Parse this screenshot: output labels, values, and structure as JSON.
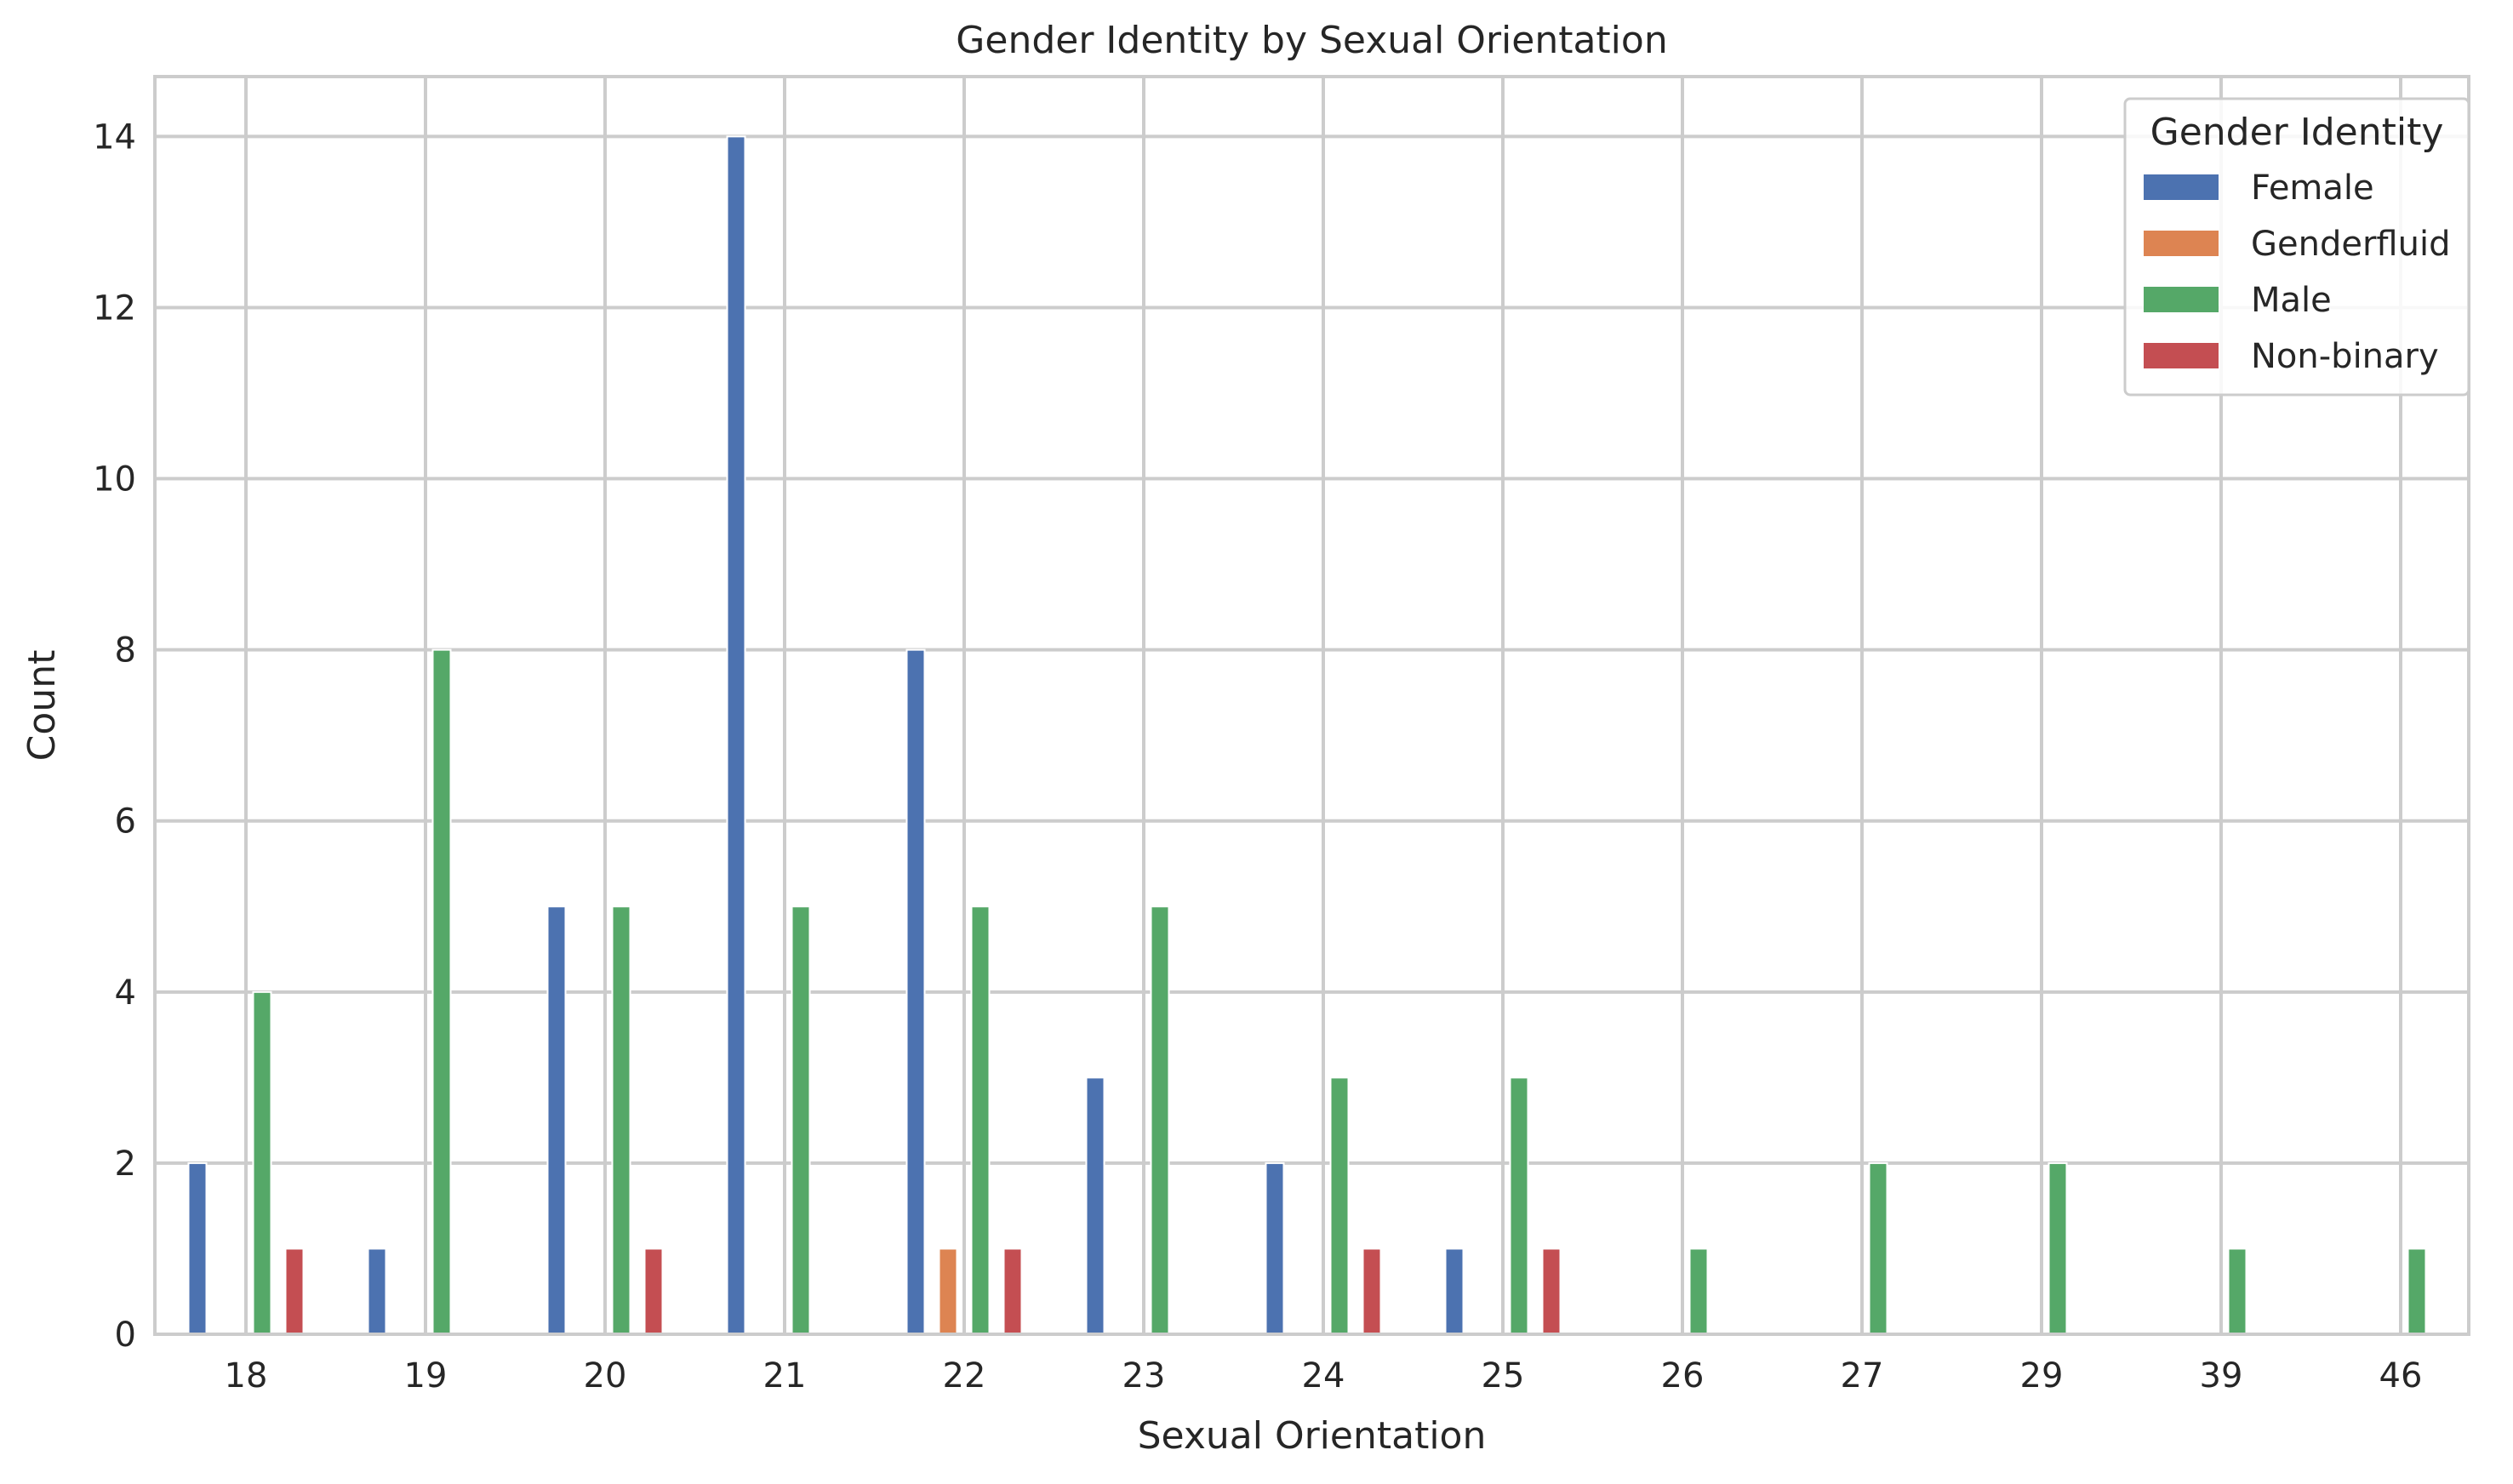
{
  "chart_data": {
    "type": "bar",
    "title": "Gender Identity by Sexual Orientation",
    "xlabel": "Sexual Orientation",
    "ylabel": "Count",
    "ylim": [
      0,
      14.7
    ],
    "yticks": [
      0,
      2,
      4,
      6,
      8,
      10,
      12,
      14
    ],
    "grid": true,
    "legend": {
      "title": "Gender Identity",
      "placement": "top-right"
    },
    "categories": [
      "18",
      "19",
      "20",
      "21",
      "22",
      "23",
      "24",
      "25",
      "26",
      "27",
      "29",
      "39",
      "46"
    ],
    "series": [
      {
        "name": "Female",
        "color": "#4c72b0",
        "values": [
          2,
          1,
          5,
          14,
          8,
          3,
          2,
          1,
          0,
          0,
          0,
          0,
          0
        ]
      },
      {
        "name": "Genderfluid",
        "color": "#dd8452",
        "values": [
          0,
          0,
          0,
          0,
          1,
          0,
          0,
          0,
          0,
          0,
          0,
          0,
          0
        ]
      },
      {
        "name": "Male",
        "color": "#55a868",
        "values": [
          4,
          8,
          5,
          5,
          5,
          5,
          3,
          3,
          1,
          2,
          2,
          1,
          1
        ]
      },
      {
        "name": "Non-binary",
        "color": "#c44e52",
        "values": [
          1,
          0,
          1,
          0,
          1,
          0,
          1,
          1,
          0,
          0,
          0,
          0,
          0
        ]
      }
    ]
  }
}
